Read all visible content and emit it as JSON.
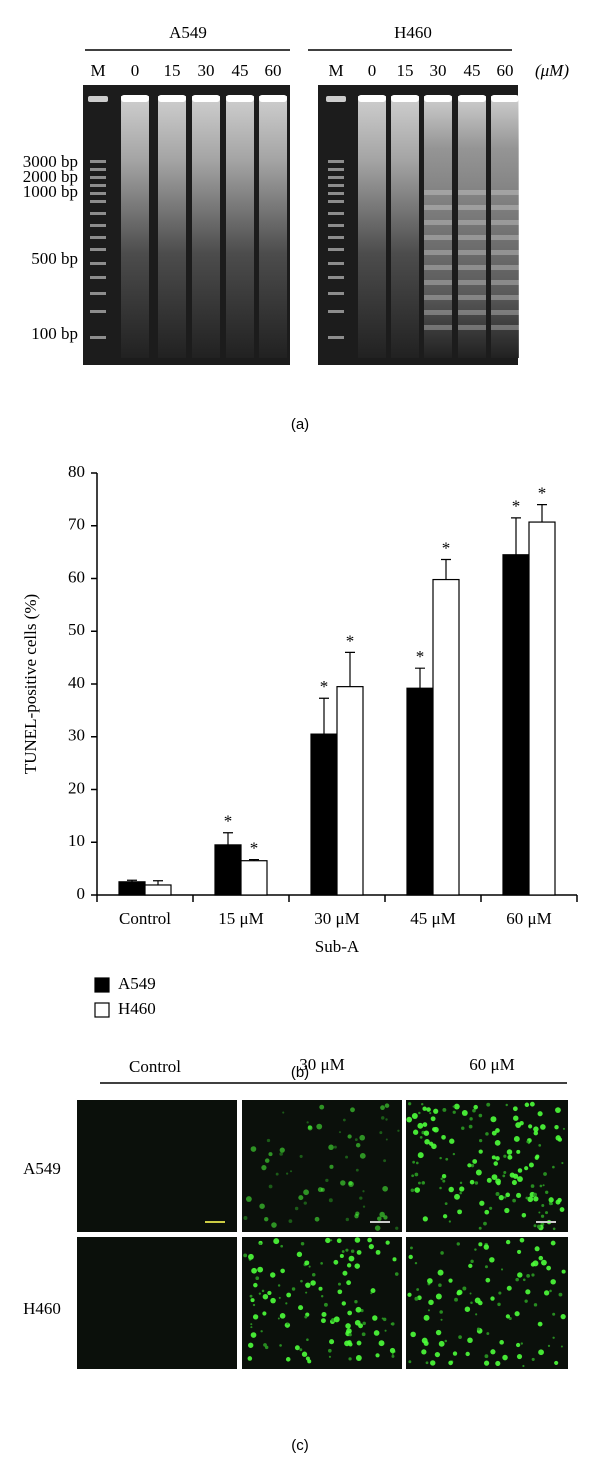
{
  "panel_a": {
    "groups": [
      "A549",
      "H460"
    ],
    "lanes": [
      [
        "M",
        "0",
        "15",
        "30",
        "45",
        "60"
      ],
      [
        "M",
        "0",
        "15",
        "30",
        "45",
        "60"
      ]
    ],
    "unit": "(μM)",
    "markers": [
      "3000 bp",
      "2000 bp",
      "1000 bp",
      "500 bp",
      "100 bp"
    ],
    "caption": "(a)"
  },
  "chart_data": {
    "type": "bar",
    "ylabel": "TUNEL-positive cells (%)",
    "xlabel": "Sub-A",
    "categories": [
      "Control",
      "15 μM",
      "30 μM",
      "45 μM",
      "60 μM"
    ],
    "series": [
      {
        "name": "A549",
        "color": "#000000",
        "values": [
          2.5,
          9.5,
          30.5,
          39.2,
          64.5
        ],
        "errors": [
          0.3,
          2.3,
          6.8,
          3.8,
          7.0
        ],
        "labels": [
          null,
          "*",
          "*",
          "*",
          "*"
        ]
      },
      {
        "name": "H460",
        "color": "#ffffff",
        "values": [
          1.9,
          6.5,
          39.5,
          59.8,
          70.7
        ],
        "errors": [
          0.8,
          0.2,
          6.5,
          3.8,
          3.3
        ],
        "labels": [
          null,
          "*",
          "*",
          "*",
          "*"
        ]
      }
    ],
    "ylim": [
      0,
      80
    ],
    "yticks": [
      0,
      10,
      20,
      30,
      40,
      50,
      60,
      70,
      80
    ],
    "legend": "bottom-left",
    "caption": "(b)"
  },
  "panel_c": {
    "columns": [
      "Control",
      "30 μM",
      "60 μM"
    ],
    "rows": [
      "A549",
      "H460"
    ],
    "caption": "(c)"
  }
}
